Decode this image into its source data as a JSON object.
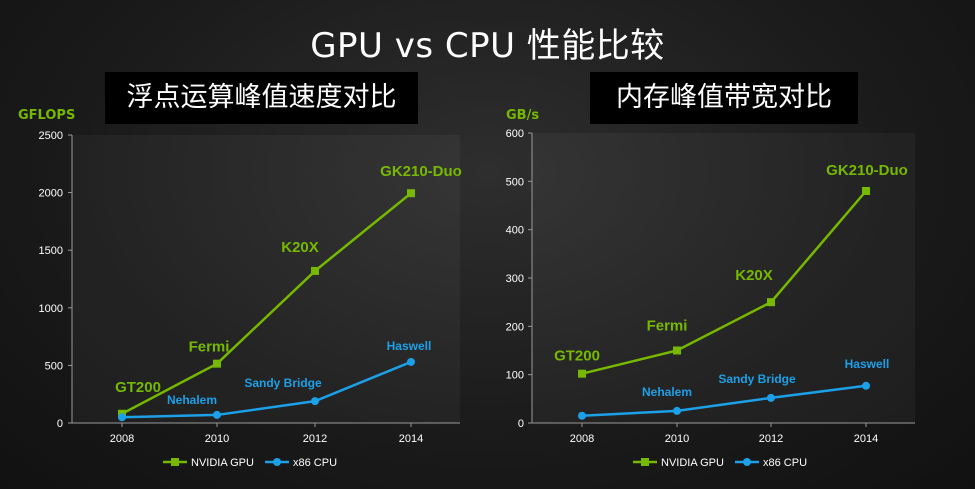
{
  "page": {
    "title": "GPU vs CPU 性能比较",
    "subtitle_left": "浮点运算峰值速度对比",
    "subtitle_right": "内存峰值带宽对比"
  },
  "colors": {
    "gpu": "#76b900",
    "cpu": "#1ca0e8",
    "axis_text": "#ffffff",
    "grid": "#9a9a9a"
  },
  "chart_data": [
    {
      "type": "line",
      "ylabel": "GFLOPS",
      "ylim": [
        0,
        2500
      ],
      "yticks": [
        0,
        500,
        1000,
        1500,
        2000,
        2500
      ],
      "x": [
        2008,
        2010,
        2012,
        2014
      ],
      "xticks": [
        "2008",
        "2010",
        "2012",
        "2014"
      ],
      "series": [
        {
          "name": "NVIDIA GPU",
          "values": [
            80,
            515,
            1320,
            1995
          ],
          "labels": [
            "GT200",
            "Fermi",
            "K20X",
            "GK210-Duo"
          ]
        },
        {
          "name": "x86 CPU",
          "values": [
            50,
            70,
            190,
            530
          ],
          "labels": [
            "",
            "Nehalem",
            "Sandy Bridge",
            "Haswell"
          ]
        }
      ],
      "legend": [
        "NVIDIA GPU",
        "x86 CPU"
      ]
    },
    {
      "type": "line",
      "ylabel": "GB/s",
      "ylim": [
        0,
        600
      ],
      "yticks": [
        0,
        100,
        200,
        300,
        400,
        500,
        600
      ],
      "x": [
        2008,
        2010,
        2012,
        2014
      ],
      "xticks": [
        "2008",
        "2010",
        "2012",
        "2014"
      ],
      "series": [
        {
          "name": "NVIDIA GPU",
          "values": [
            102,
            150,
            250,
            480
          ],
          "labels": [
            "GT200",
            "Fermi",
            "K20X",
            "GK210-Duo"
          ]
        },
        {
          "name": "x86 CPU",
          "values": [
            15,
            25,
            52,
            77
          ],
          "labels": [
            "",
            "Nehalem",
            "Sandy Bridge",
            "Haswell"
          ]
        }
      ],
      "legend": [
        "NVIDIA GPU",
        "x86 CPU"
      ]
    }
  ]
}
